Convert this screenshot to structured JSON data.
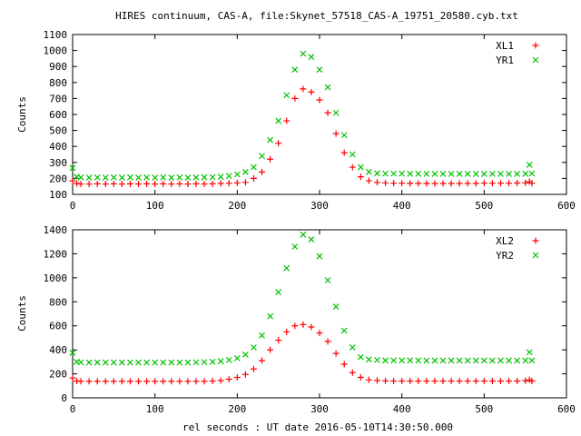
{
  "chart_data": [
    {
      "type": "scatter",
      "title": "HIRES continuum, CAS-A, file:Skynet_57518_CAS-A_19751_20580.cyb.txt",
      "xlabel": "",
      "ylabel": "Counts",
      "xlim": [
        0,
        600
      ],
      "ylim": [
        100,
        1100
      ],
      "xticks": [
        0,
        100,
        200,
        300,
        400,
        500,
        600
      ],
      "yticks": [
        100,
        200,
        300,
        400,
        500,
        600,
        700,
        800,
        900,
        1000,
        1100
      ],
      "legend_position": "top-right",
      "x": [
        0,
        5,
        10,
        20,
        30,
        40,
        50,
        60,
        70,
        80,
        90,
        100,
        110,
        120,
        130,
        140,
        150,
        160,
        170,
        180,
        190,
        200,
        210,
        220,
        230,
        240,
        250,
        260,
        270,
        280,
        290,
        300,
        310,
        320,
        330,
        340,
        350,
        360,
        370,
        380,
        390,
        400,
        410,
        420,
        430,
        440,
        450,
        460,
        470,
        480,
        490,
        500,
        510,
        520,
        530,
        540,
        550,
        555,
        558
      ],
      "series": [
        {
          "name": "XL1",
          "color": "#ff0000",
          "marker": "plus",
          "values": [
            185,
            168,
            165,
            165,
            166,
            165,
            166,
            165,
            166,
            165,
            166,
            165,
            166,
            165,
            166,
            165,
            166,
            165,
            166,
            168,
            170,
            172,
            175,
            200,
            240,
            320,
            420,
            560,
            700,
            760,
            740,
            690,
            610,
            480,
            360,
            270,
            210,
            185,
            175,
            172,
            170,
            170,
            169,
            169,
            168,
            168,
            168,
            168,
            168,
            169,
            169,
            170,
            170,
            170,
            170,
            171,
            172,
            180,
            170
          ]
        },
        {
          "name": "YR1",
          "color": "#00c000",
          "marker": "cross",
          "values": [
            265,
            210,
            206,
            205,
            206,
            205,
            206,
            205,
            206,
            205,
            206,
            205,
            206,
            205,
            206,
            205,
            206,
            207,
            208,
            210,
            215,
            225,
            240,
            270,
            340,
            440,
            560,
            720,
            880,
            980,
            960,
            880,
            770,
            610,
            470,
            350,
            270,
            240,
            232,
            230,
            230,
            230,
            229,
            229,
            228,
            228,
            228,
            228,
            228,
            228,
            228,
            228,
            228,
            228,
            228,
            228,
            229,
            285,
            230
          ]
        }
      ]
    },
    {
      "type": "scatter",
      "title": "",
      "xlabel": "rel seconds : UT date 2016-05-10T14:30:50.000",
      "ylabel": "Counts",
      "xlim": [
        0,
        600
      ],
      "ylim": [
        0,
        1400
      ],
      "xticks": [
        0,
        100,
        200,
        300,
        400,
        500,
        600
      ],
      "yticks": [
        0,
        200,
        400,
        600,
        800,
        1000,
        1200,
        1400
      ],
      "legend_position": "top-right",
      "x": [
        0,
        5,
        10,
        20,
        30,
        40,
        50,
        60,
        70,
        80,
        90,
        100,
        110,
        120,
        130,
        140,
        150,
        160,
        170,
        180,
        190,
        200,
        210,
        220,
        230,
        240,
        250,
        260,
        270,
        280,
        290,
        300,
        310,
        320,
        330,
        340,
        350,
        360,
        370,
        380,
        390,
        400,
        410,
        420,
        430,
        440,
        450,
        460,
        470,
        480,
        490,
        500,
        510,
        520,
        530,
        540,
        550,
        555,
        558
      ],
      "series": [
        {
          "name": "XL2",
          "color": "#ff0000",
          "marker": "plus",
          "values": [
            165,
            140,
            138,
            138,
            138,
            138,
            138,
            138,
            138,
            138,
            138,
            138,
            138,
            138,
            138,
            138,
            138,
            138,
            140,
            145,
            155,
            170,
            195,
            240,
            310,
            400,
            480,
            550,
            600,
            610,
            590,
            540,
            470,
            370,
            280,
            210,
            170,
            150,
            145,
            142,
            140,
            140,
            140,
            140,
            140,
            140,
            140,
            140,
            140,
            140,
            140,
            140,
            140,
            140,
            140,
            140,
            142,
            150,
            140
          ]
        },
        {
          "name": "YR2",
          "color": "#00c000",
          "marker": "cross",
          "values": [
            375,
            300,
            296,
            295,
            295,
            295,
            295,
            295,
            295,
            295,
            295,
            295,
            295,
            295,
            295,
            295,
            296,
            298,
            300,
            305,
            315,
            330,
            360,
            420,
            520,
            680,
            880,
            1080,
            1260,
            1360,
            1320,
            1180,
            980,
            760,
            560,
            420,
            340,
            320,
            315,
            312,
            312,
            312,
            312,
            312,
            311,
            311,
            311,
            311,
            311,
            311,
            311,
            311,
            311,
            311,
            311,
            311,
            312,
            380,
            312
          ]
        }
      ]
    }
  ]
}
